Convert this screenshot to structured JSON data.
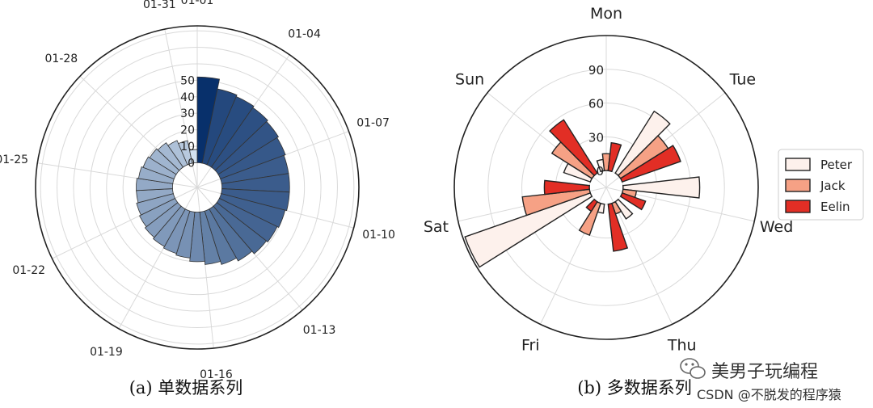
{
  "chart_data": [
    {
      "type": "polar-bar",
      "caption": "(a)  单数据系列",
      "categories": [
        "01-01",
        "01-02",
        "01-03",
        "01-04",
        "01-05",
        "01-06",
        "01-07",
        "01-08",
        "01-09",
        "01-10",
        "01-11",
        "01-12",
        "01-13",
        "01-14",
        "01-15",
        "01-16",
        "01-17",
        "01-18",
        "01-19",
        "01-20",
        "01-21",
        "01-22",
        "01-23",
        "01-24",
        "01-25",
        "01-26",
        "01-27",
        "01-28",
        "01-29",
        "01-30",
        "01-31"
      ],
      "theta_labels": [
        "01-01",
        "01-04",
        "01-07",
        "01-10",
        "01-13",
        "01-16",
        "01-19",
        "01-22",
        "01-25",
        "01-28",
        "01-31"
      ],
      "values": [
        52,
        46,
        45,
        44,
        43,
        42,
        41,
        41,
        41,
        40,
        39,
        38,
        36,
        34,
        32,
        30,
        28,
        27,
        26,
        25,
        24,
        23,
        22,
        22,
        21,
        20,
        19,
        18,
        16,
        14,
        8
      ],
      "r_ticks": [
        "0",
        "10",
        "20",
        "30",
        "40",
        "50"
      ],
      "rlim": [
        -15,
        83
      ],
      "colormap": "Blues"
    },
    {
      "type": "polar-bar",
      "caption": "(b)  多数据系列",
      "categories": [
        "Mon",
        "Tue",
        "Wed",
        "Thu",
        "Fri",
        "Sat",
        "Sun"
      ],
      "r_ticks": [
        "0",
        "30",
        "60",
        "90"
      ],
      "rlim": [
        -15,
        120
      ],
      "legend": "right",
      "series": [
        {
          "name": "Peter",
          "color": "#fdf1ec",
          "values": [
            10,
            65,
            68,
            18,
            8,
            118,
            25
          ]
        },
        {
          "name": "Jack",
          "color": "#f6a185",
          "values": [
            15,
            50,
            12,
            10,
            30,
            60,
            42
          ]
        },
        {
          "name": "Eelin",
          "color": "#e22e25",
          "values": [
            25,
            55,
            22,
            42,
            10,
            40,
            56
          ]
        }
      ]
    }
  ],
  "watermark": {
    "account": "美男子玩编程",
    "credit": "CSDN @不脱发的程序猿"
  }
}
